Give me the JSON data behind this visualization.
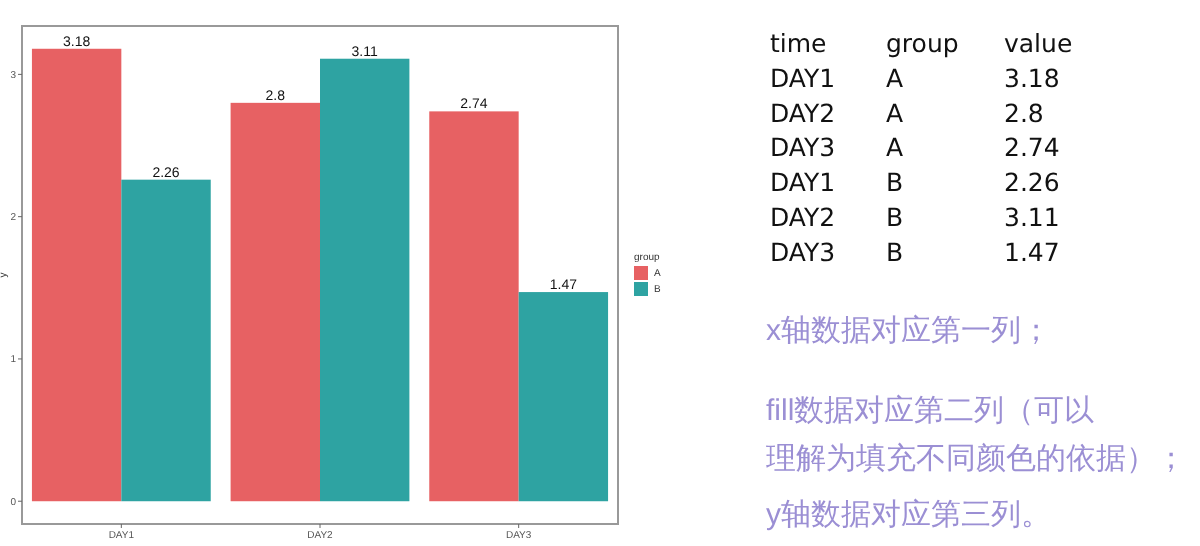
{
  "chart_data": [
    {
      "type": "bar",
      "categories": [
        "DAY1",
        "DAY2",
        "DAY3"
      ],
      "ylabel": "y",
      "legend_title": "group",
      "legend": "right",
      "grid": false,
      "data_labels": true,
      "ylim": [
        -0.16,
        3.34
      ],
      "yticks": [
        0,
        1,
        2,
        3
      ],
      "series": [
        {
          "name": "A",
          "color": "#e76163",
          "values": [
            3.18,
            2.8,
            2.74
          ]
        },
        {
          "name": "B",
          "color": "#2ea3a2",
          "values": [
            2.26,
            3.11,
            1.47
          ]
        }
      ]
    },
    {
      "type": "other",
      "annotations": [
        "time",
        "group",
        "value",
        "DAY1",
        "A",
        "3.18",
        "DAY2",
        "A",
        "2.8",
        "DAY3",
        "A",
        "2.74",
        "DAY1",
        "B",
        "2.26",
        "DAY2",
        "B",
        "3.11",
        "DAY3",
        "B",
        "1.47",
        "x轴数据对应第一列；",
        "fill数据对应第二列（可以理解为填充不同颜色的依据）；",
        "y轴数据对应第三列。"
      ]
    }
  ]
}
